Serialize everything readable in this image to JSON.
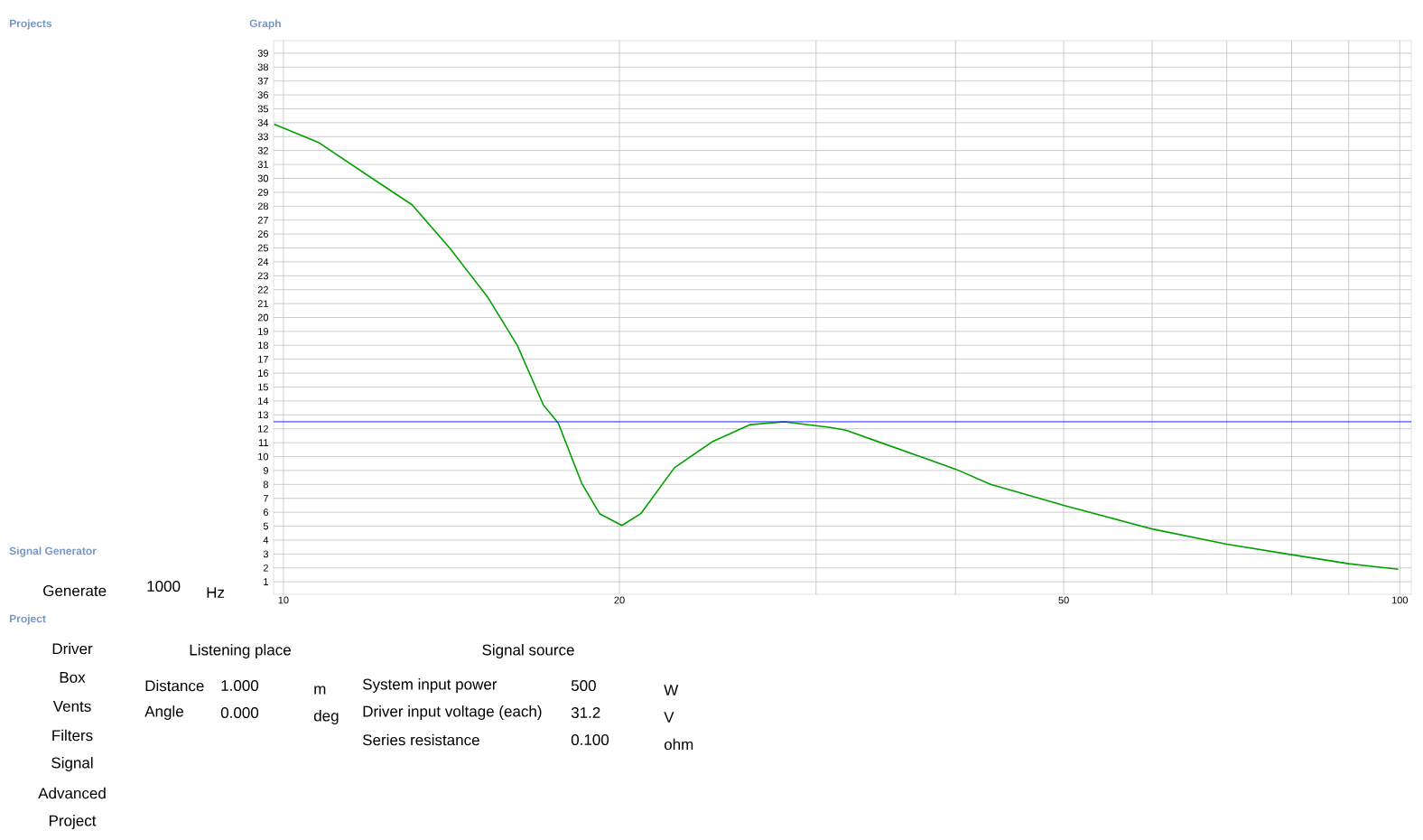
{
  "chart_data": {
    "type": "line",
    "x": [
      9.81,
      10.74,
      12.06,
      13.04,
      14.09,
      15.23,
      16.2,
      17.1,
      17.63,
      18.5,
      19.2,
      20.1,
      20.9,
      22.4,
      24.2,
      26.2,
      28.1,
      30.9,
      31.9,
      34.3,
      40,
      43,
      50,
      60,
      70,
      80,
      90,
      99.7
    ],
    "series": [
      {
        "color": "#00a000",
        "values": [
          33.9,
          32.6,
          29.9,
          28.1,
          25.0,
          21.5,
          18.0,
          13.7,
          12.4,
          8.1,
          5.9,
          5.05,
          5.9,
          9.2,
          11.05,
          12.3,
          12.5,
          12.1,
          11.9,
          11.0,
          9.1,
          8.0,
          6.5,
          4.8,
          3.7,
          2.95,
          2.3,
          1.9
        ]
      }
    ],
    "ref_lines": [
      {
        "axis": "y",
        "value": 12.5,
        "color": "#0000ff"
      }
    ],
    "log": "x",
    "xlim": [
      9.8,
      102.4
    ],
    "ylim": [
      0.1,
      39.9
    ],
    "xticks": [
      10,
      20,
      {
        "value": 30,
        "label": null
      },
      {
        "value": 40,
        "label": null
      },
      50,
      {
        "value": 60,
        "label": null
      },
      {
        "value": 70,
        "label": null
      },
      {
        "value": 80,
        "label": null
      },
      {
        "value": 90,
        "label": null
      },
      100
    ],
    "yticks": [
      1,
      2,
      3,
      4,
      5,
      6,
      7,
      8,
      9,
      10,
      11,
      12,
      13,
      14,
      15,
      16,
      17,
      18,
      19,
      20,
      21,
      22,
      23,
      24,
      25,
      26,
      27,
      28,
      29,
      30,
      31,
      32,
      33,
      34,
      35,
      36,
      37,
      38,
      39
    ],
    "grid": true,
    "marker": "none",
    "line_style": "solid",
    "annotations": [
      "Projects",
      "Graph",
      "Signal Generator",
      "Generate",
      "1000",
      "Hz",
      "Project",
      "Driver",
      "Box",
      "Vents",
      "Filters",
      "Signal",
      "Advanced",
      "Project",
      "Listening place",
      "Signal source",
      "Distance",
      "1.000",
      "m",
      "Angle",
      "0.000",
      "deg",
      "System input power",
      "500",
      "W",
      "Driver input voltage (each)",
      "31.2",
      "V",
      "Series resistance",
      "0.100",
      "ohm"
    ]
  }
}
